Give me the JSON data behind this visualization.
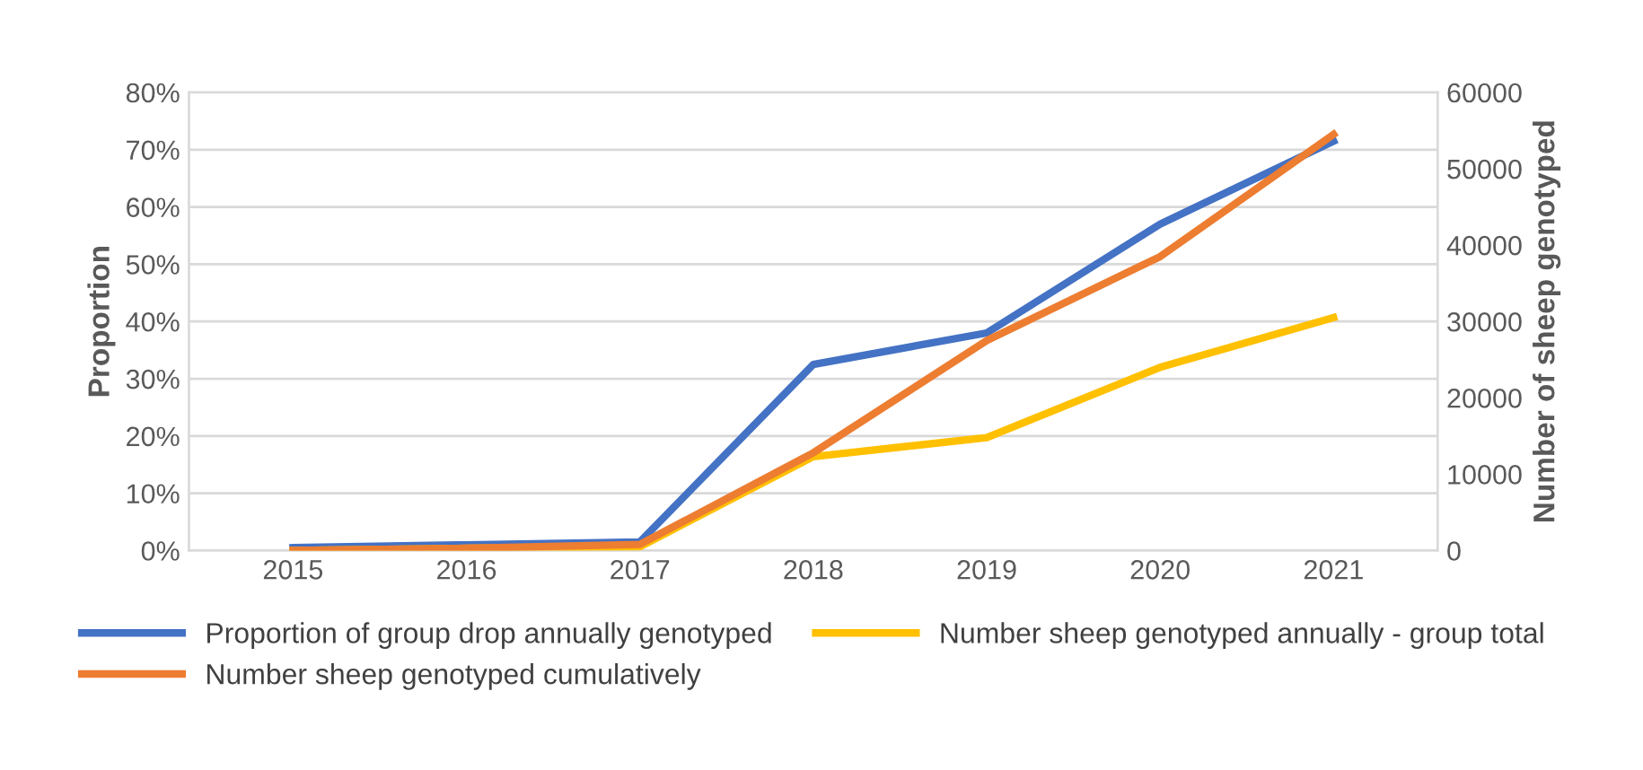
{
  "chart_data": {
    "type": "line",
    "categories": [
      "2015",
      "2016",
      "2017",
      "2018",
      "2019",
      "2020",
      "2021"
    ],
    "ylabel": "Proportion",
    "y2label": "Number of sheep genotyped",
    "series": [
      {
        "name": "Proportion of group drop annually genotyped",
        "color": "#4472c4",
        "values": [
          0.5,
          1,
          1.5,
          32.5,
          38,
          57,
          71.5
        ]
      },
      {
        "name": "Number sheep genotyped annually - group total",
        "color": "#ffc000",
        "axis": "y2",
        "values": [
          0,
          300,
          500,
          12300,
          14800,
          24000,
          30500
        ]
      },
      {
        "name": "Number sheep genotyped cumulatively",
        "color": "#ed7d31",
        "axis": "y2",
        "values": [
          0,
          300,
          800,
          12800,
          27500,
          38500,
          54500
        ]
      }
    ],
    "ylim": [
      0,
      80
    ],
    "yticks": [
      {
        "value": 0,
        "label": "0%"
      },
      {
        "value": 10,
        "label": "10%"
      },
      {
        "value": 20,
        "label": "20%"
      },
      {
        "value": 30,
        "label": "30%"
      },
      {
        "value": 40,
        "label": "40%"
      },
      {
        "value": 50,
        "label": "50%"
      },
      {
        "value": 60,
        "label": "60%"
      },
      {
        "value": 70,
        "label": "70%"
      },
      {
        "value": 80,
        "label": "80%"
      }
    ],
    "y2lim": [
      0,
      60000
    ],
    "y2ticks": [
      0,
      10000,
      20000,
      30000,
      40000,
      50000,
      60000
    ],
    "grid": "y",
    "legend": "bottom",
    "marker": "none",
    "line_style": "solid"
  }
}
